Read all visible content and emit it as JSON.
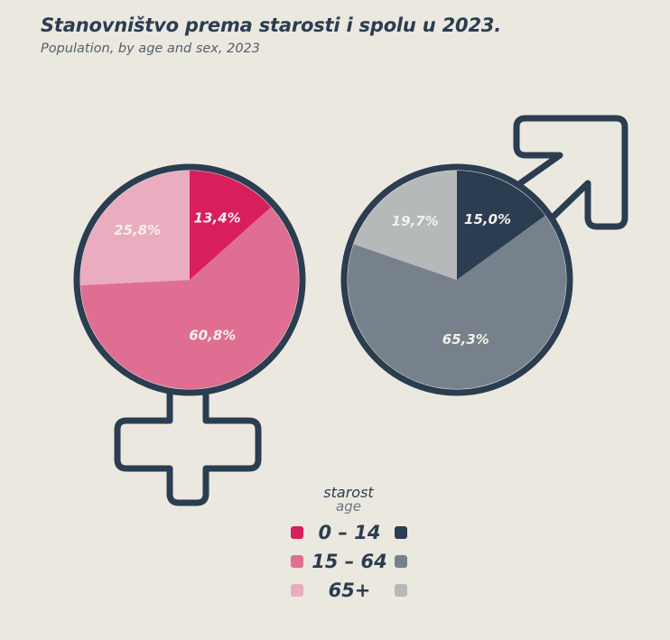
{
  "header": {
    "title": "Stanovništvo prema starosti i spolu u 2023.",
    "subtitle": "Population, by age and sex, 2023"
  },
  "legend": {
    "title": "starost",
    "subtitle": "age",
    "items": [
      {
        "label": "0 – 14",
        "female_color": "#d81e5d",
        "male_color": "#2b3d50"
      },
      {
        "label": "15 – 64",
        "female_color": "#e06e92",
        "male_color": "#77818b"
      },
      {
        "label": "65+",
        "female_color": "#e9adbf",
        "male_color": "#b5b9ba"
      }
    ]
  },
  "chart_data": [
    {
      "type": "pie",
      "symbol": "female",
      "categories": [
        "0 – 14",
        "15 – 64",
        "65+"
      ],
      "values": [
        13.4,
        60.8,
        25.8
      ],
      "labels": [
        "13,4%",
        "60,8%",
        "25,8%"
      ],
      "colors": [
        "#d81e5d",
        "#e06e92",
        "#e9adbf"
      ],
      "label_colors": [
        "#f4f1ea",
        "#f4f1ea",
        "#f4f1ea"
      ],
      "outline_color": "#2b3d50"
    },
    {
      "type": "pie",
      "symbol": "male",
      "categories": [
        "0 – 14",
        "15 – 64",
        "65+"
      ],
      "values": [
        15.0,
        65.3,
        19.7
      ],
      "labels": [
        "15,0%",
        "65,3%",
        "19,7%"
      ],
      "colors": [
        "#2b3d50",
        "#77818b",
        "#b5b9ba"
      ],
      "label_colors": [
        "#f4f1ea",
        "#f4f1ea",
        "#f4f1ea"
      ],
      "outline_color": "#2b3d50"
    }
  ]
}
